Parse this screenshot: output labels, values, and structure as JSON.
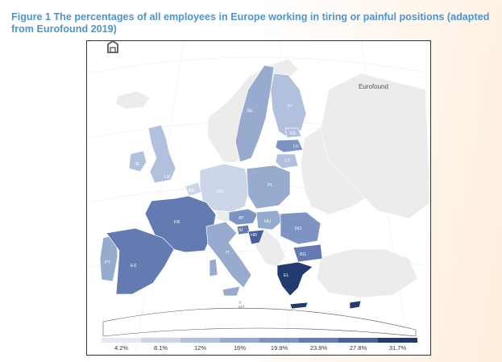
{
  "caption": "Figure 1 The percentages of all employees in Europe working in tiring or painful positions (adapted from Eurofound 2019)",
  "logo_text": "Eurofound",
  "legend": {
    "labels": [
      "4.2%",
      "8.1%",
      "12%",
      "16%",
      "19.9%",
      "23.9%",
      "27.8%",
      "31.7%"
    ],
    "colors": [
      "#e4e9f2",
      "#ccd6e8",
      "#b1c0dc",
      "#97abcf",
      "#7d93c1",
      "#637bb1",
      "#48619c",
      "#223a70"
    ]
  },
  "countries": [
    {
      "code": "SE",
      "color": "#97abcf"
    },
    {
      "code": "FI",
      "color": "#b1c0dc"
    },
    {
      "code": "EE",
      "color": "#b1c0dc"
    },
    {
      "code": "LV",
      "color": "#7d93c1"
    },
    {
      "code": "LT",
      "color": "#b1c0dc"
    },
    {
      "code": "IE",
      "color": "#b1c0dc"
    },
    {
      "code": "UK",
      "color": "#b1c0dc"
    },
    {
      "code": "BE",
      "color": "#ccd6e8"
    },
    {
      "code": "DE",
      "color": "#ccd6e8"
    },
    {
      "code": "PL",
      "color": "#97abcf"
    },
    {
      "code": "FR",
      "color": "#637bb1"
    },
    {
      "code": "AT",
      "color": "#7d93c1"
    },
    {
      "code": "HU",
      "color": "#97abcf"
    },
    {
      "code": "SI",
      "color": "#637bb1"
    },
    {
      "code": "HR",
      "color": "#48619c"
    },
    {
      "code": "RO",
      "color": "#7d93c1"
    },
    {
      "code": "BG",
      "color": "#637bb1"
    },
    {
      "code": "PT",
      "color": "#97abcf"
    },
    {
      "code": "ES",
      "color": "#637bb1"
    },
    {
      "code": "IT",
      "color": "#97abcf"
    },
    {
      "code": "EL",
      "color": "#223a70"
    },
    {
      "code": "MT",
      "color": "#ccd6e8"
    }
  ]
}
